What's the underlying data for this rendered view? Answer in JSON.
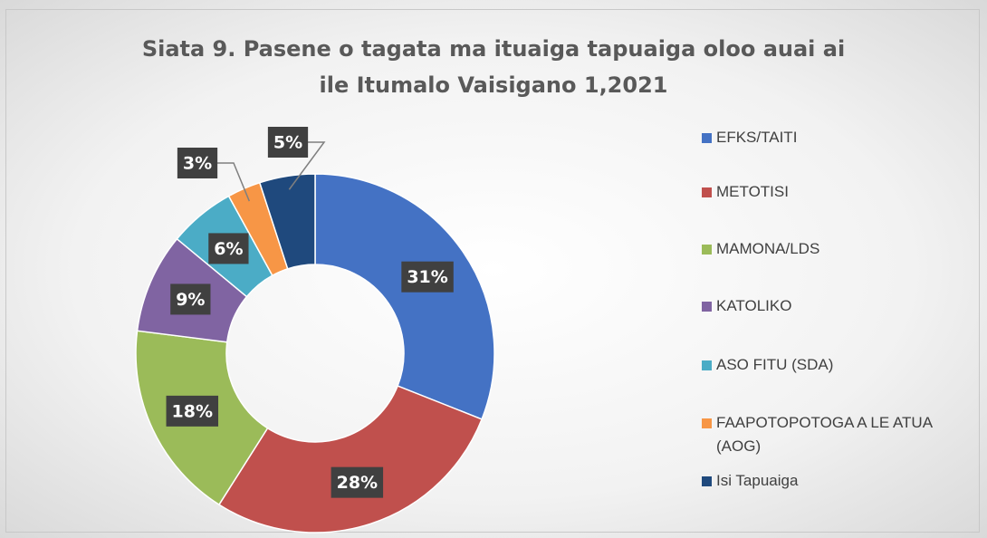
{
  "chart_data": {
    "type": "donut",
    "title": "Siata 9. Pasene o tagata ma ituaiga tapuaiga oloo auai ai ile Itumalo Vaisigano 1,2021",
    "categories": [
      "EFKS/TAITI",
      "METOTISI",
      "MAMONA/LDS",
      "KATOLIKO",
      "ASO FITU (SDA)",
      "FAAPOTOPOTOGA A LE ATUA (AOG)",
      "Isi Tapuaiga"
    ],
    "values": [
      31,
      28,
      18,
      9,
      6,
      3,
      5
    ],
    "value_labels": [
      "31%",
      "28%",
      "18%",
      "9%",
      "6%",
      "3%",
      "5%"
    ],
    "colors": [
      "#4472c4",
      "#c0504d",
      "#9bbb59",
      "#8064a2",
      "#4bacc6",
      "#f79646",
      "#1f497d"
    ],
    "legend": "right"
  }
}
